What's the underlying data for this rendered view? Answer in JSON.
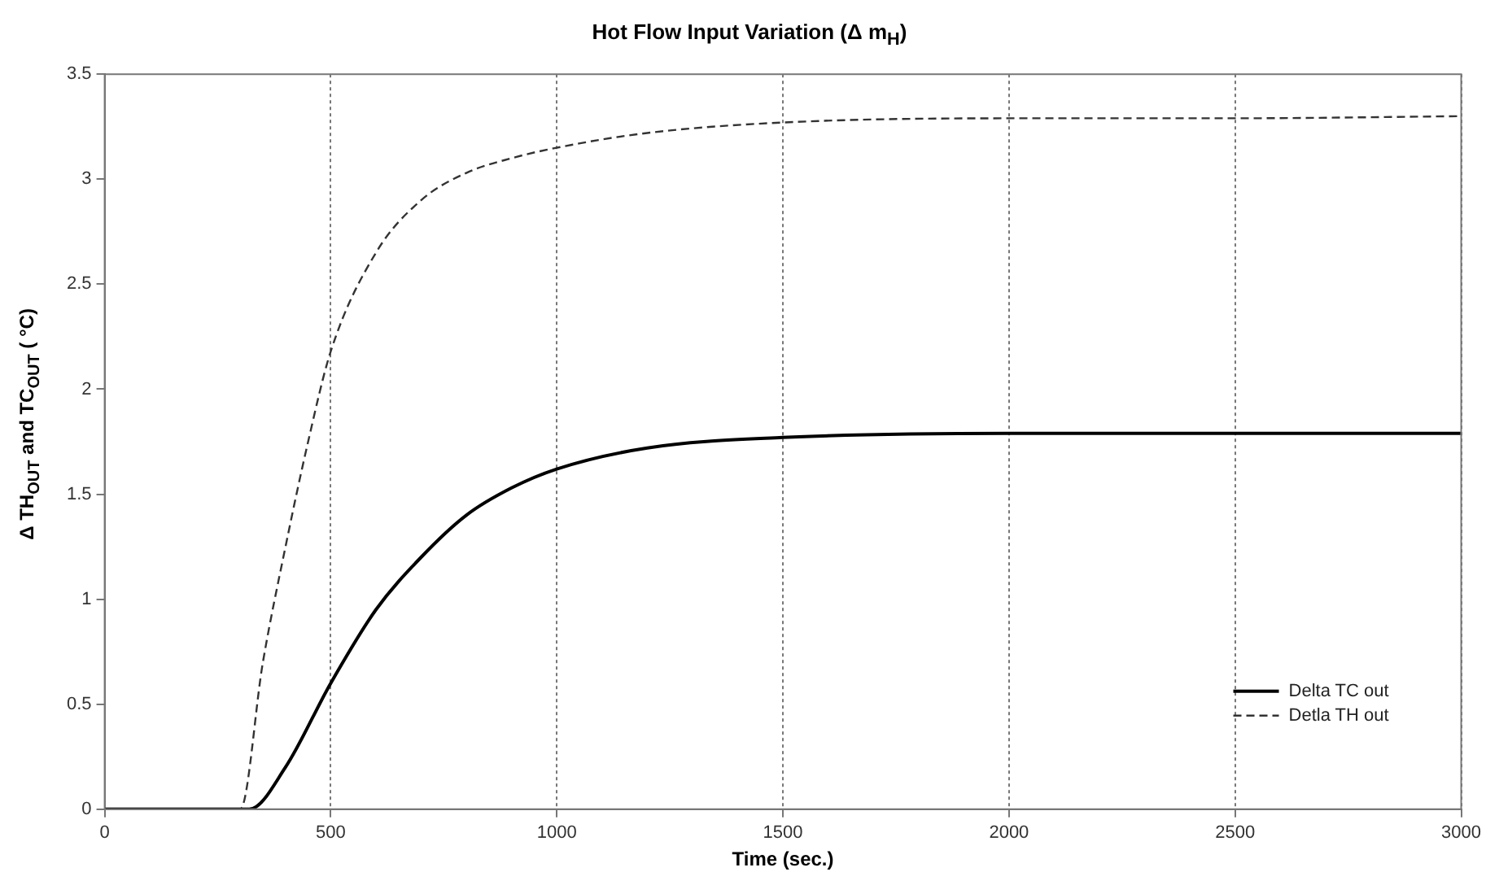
{
  "chart_data": {
    "type": "line",
    "title": "Hot Flow Input Variation (Δ m$_{H}$)",
    "xlabel": "Time (sec.)",
    "ylabel": "Δ TH$_{OUT}$ and TC$_{OUT}$ ( °C)",
    "xlim": [
      0,
      3000
    ],
    "xticks": [
      0,
      500,
      1000,
      1500,
      2000,
      2500,
      3000
    ],
    "ylim": [
      0,
      3.5
    ],
    "yticks": [
      0,
      0.5,
      1,
      1.5,
      2,
      2.5,
      3,
      3.5
    ],
    "grid": "x",
    "legend": "bottom right",
    "series": [
      {
        "name": "Delta TC out",
        "color": "#000000",
        "line_style": "solid",
        "x": [
          0,
          320,
          400,
          500,
          600,
          700,
          800,
          900,
          1000,
          1200,
          1500,
          2000,
          2500,
          3000
        ],
        "values": [
          0,
          0,
          0.2,
          0.6,
          0.95,
          1.2,
          1.4,
          1.53,
          1.62,
          1.72,
          1.77,
          1.79,
          1.79,
          1.79
        ]
      },
      {
        "name": "Detla TH out",
        "color": "#333333",
        "line_style": "dashed",
        "x": [
          0,
          300,
          350,
          400,
          450,
          500,
          600,
          700,
          800,
          900,
          1000,
          1200,
          1500,
          2000,
          2500,
          3000
        ],
        "values": [
          0,
          0,
          0.7,
          1.25,
          1.75,
          2.18,
          2.65,
          2.9,
          3.03,
          3.1,
          3.15,
          3.22,
          3.27,
          3.29,
          3.29,
          3.3
        ]
      }
    ]
  }
}
